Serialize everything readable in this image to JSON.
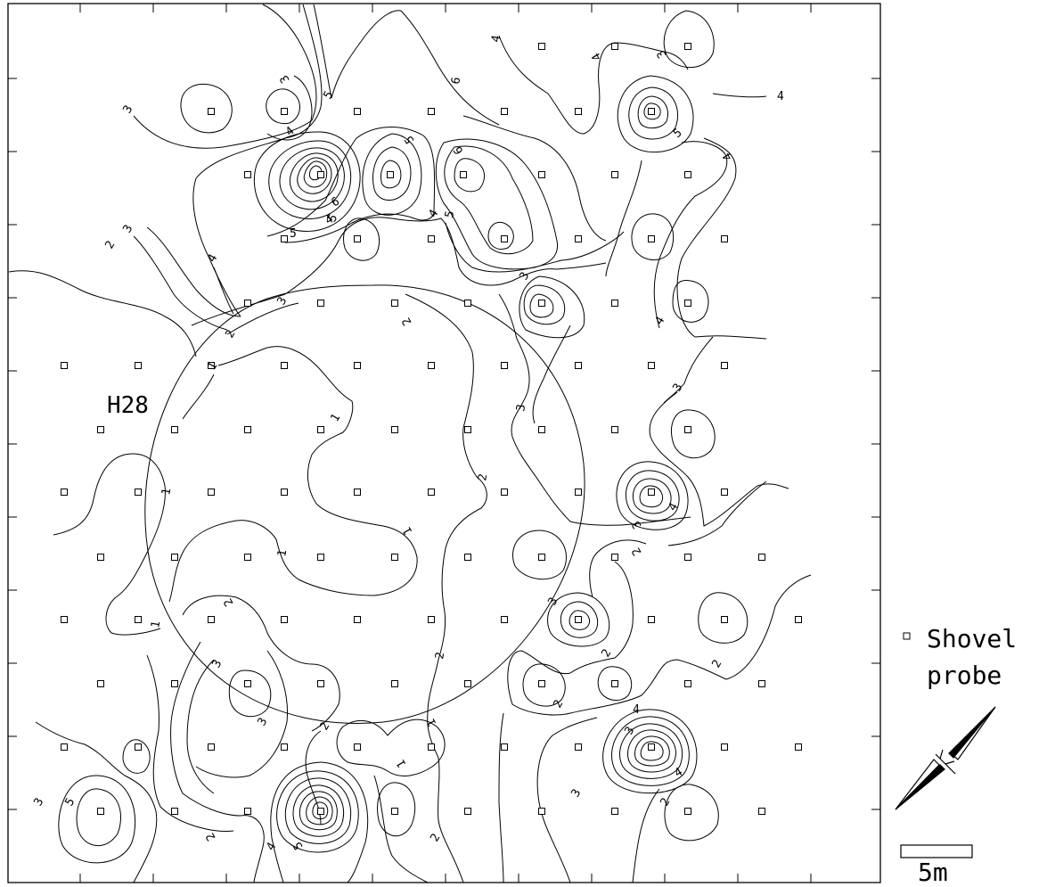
{
  "map": {
    "feature_label": "H28",
    "contour_levels": [
      "1",
      "2",
      "3",
      "4",
      "5",
      "6"
    ],
    "legend": {
      "symbol": "square-marker",
      "line1": "Shovel",
      "line2": "probe"
    },
    "scale_bar": {
      "label": "5m"
    },
    "north_arrow": {
      "icon": "north-arrow-icon"
    }
  },
  "contour_labels": [
    {
      "text": "3"
    },
    {
      "text": "3"
    },
    {
      "text": "5"
    },
    {
      "text": "4"
    },
    {
      "text": "3"
    },
    {
      "text": "4"
    },
    {
      "text": "5"
    },
    {
      "text": "4"
    },
    {
      "text": "4"
    },
    {
      "text": "6"
    },
    {
      "text": "5"
    },
    {
      "text": "6"
    },
    {
      "text": "5"
    },
    {
      "text": "4"
    },
    {
      "text": "5"
    },
    {
      "text": "4"
    },
    {
      "text": "6"
    },
    {
      "text": "5"
    },
    {
      "text": "4"
    },
    {
      "text": "2"
    },
    {
      "text": "3"
    },
    {
      "text": "4"
    },
    {
      "text": "3"
    },
    {
      "text": "3"
    },
    {
      "text": "2"
    },
    {
      "text": "2"
    },
    {
      "text": "1"
    },
    {
      "text": "3"
    },
    {
      "text": "4"
    },
    {
      "text": "1"
    },
    {
      "text": "3"
    },
    {
      "text": "1"
    },
    {
      "text": "2"
    },
    {
      "text": "1"
    },
    {
      "text": "1"
    },
    {
      "text": "4"
    },
    {
      "text": "3"
    },
    {
      "text": "2"
    },
    {
      "text": "1"
    },
    {
      "text": "2"
    },
    {
      "text": "3"
    },
    {
      "text": "2"
    },
    {
      "text": "3"
    },
    {
      "text": "3"
    },
    {
      "text": "2"
    },
    {
      "text": "2"
    },
    {
      "text": "2"
    },
    {
      "text": "1"
    },
    {
      "text": "1"
    },
    {
      "text": "5"
    },
    {
      "text": "4"
    },
    {
      "text": "2"
    },
    {
      "text": "2"
    },
    {
      "text": "3"
    },
    {
      "text": "4"
    },
    {
      "text": "3"
    },
    {
      "text": "4"
    },
    {
      "text": "5"
    },
    {
      "text": "2"
    },
    {
      "text": "2"
    },
    {
      "text": "3"
    }
  ]
}
